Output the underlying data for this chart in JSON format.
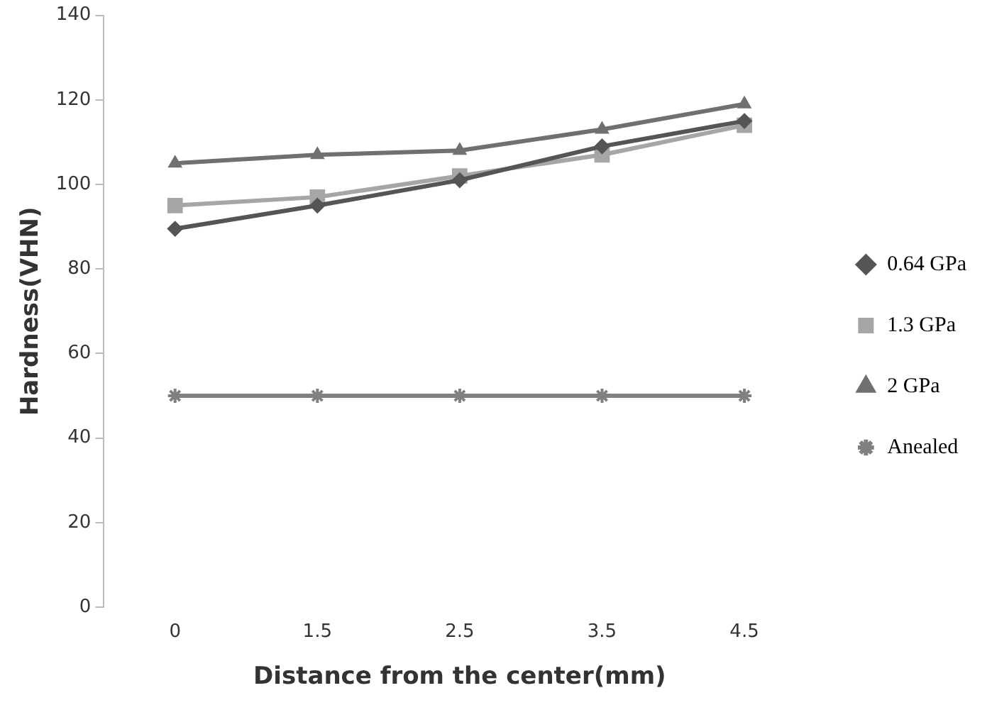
{
  "chart_data": {
    "type": "line",
    "xlabel": "Distance from the center(mm)",
    "ylabel": "Hardness(VHN)",
    "categories": [
      "0",
      "1.5",
      "2.5",
      "3.5",
      "4.5"
    ],
    "series": [
      {
        "name": "0.64 GPa",
        "color": "#555555",
        "marker": "diamond",
        "values": [
          89.5,
          95,
          101,
          109,
          115
        ]
      },
      {
        "name": "1.3 GPa",
        "color": "#a6a6a6",
        "marker": "square",
        "values": [
          95,
          97,
          102,
          107,
          114
        ]
      },
      {
        "name": "2 GPa",
        "color": "#707070",
        "marker": "triangle",
        "values": [
          105,
          107,
          108,
          113,
          119
        ]
      },
      {
        "name": "Anealed",
        "color": "#808080",
        "marker": "cross",
        "values": [
          50,
          50,
          50,
          50,
          50
        ]
      }
    ],
    "ylim": [
      0,
      140
    ],
    "yticks": [
      0,
      20,
      40,
      60,
      80,
      100,
      120,
      140
    ],
    "grid": false,
    "legend": "right"
  }
}
